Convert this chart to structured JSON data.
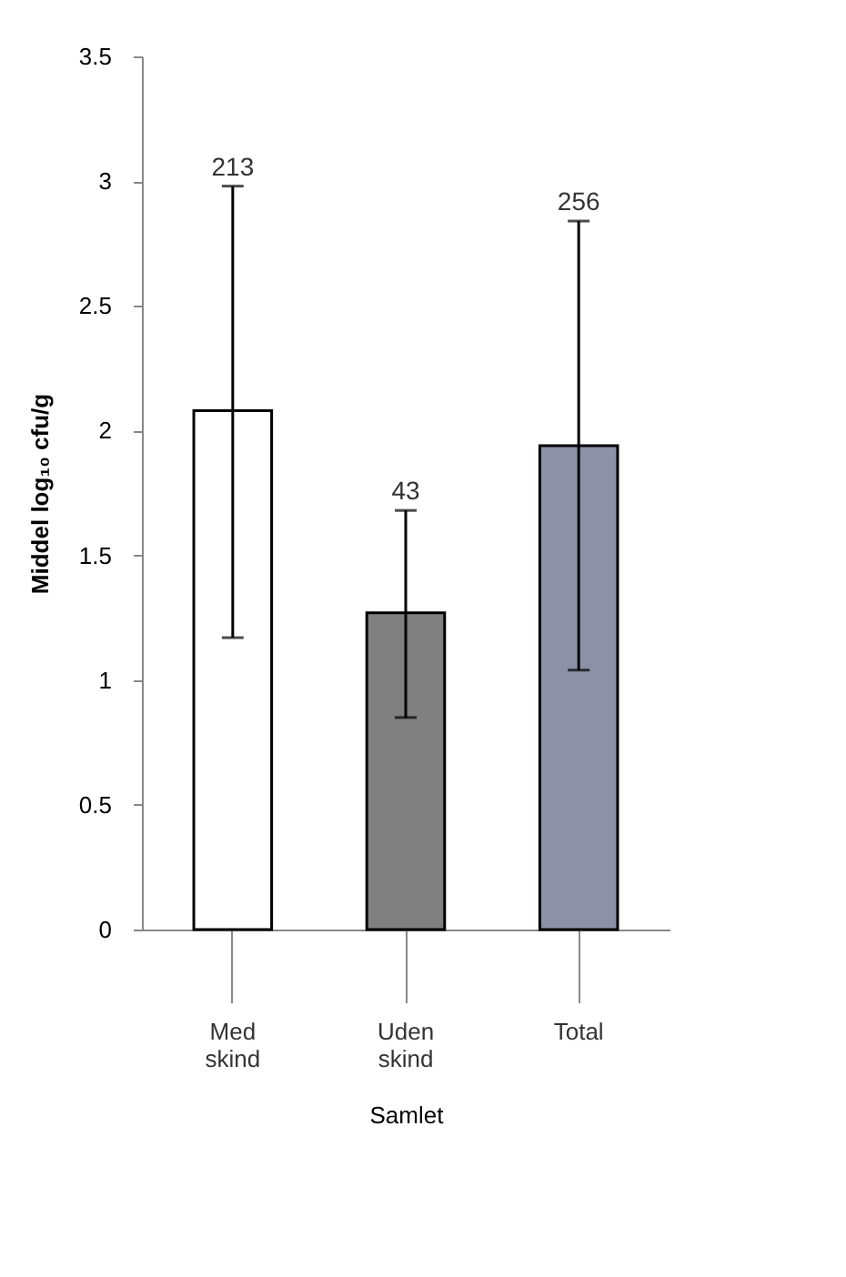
{
  "chart_data": {
    "type": "bar",
    "ylabel": "Middel log₁₀ cfu/g",
    "xlabel": "Samlet",
    "categories": [
      "Med skind",
      "Uden skind",
      "Total"
    ],
    "values": [
      2.08,
      1.27,
      1.94
    ],
    "colors": [
      "#ffffff",
      "#808080",
      "#8c91a8"
    ],
    "errors": [
      [
        1.17,
        2.98
      ],
      [
        0.85,
        1.68
      ],
      [
        1.04,
        2.84
      ]
    ],
    "annotations": [
      {
        "text": "213",
        "x": "Med skind",
        "y": 2.98
      },
      {
        "text": "43",
        "x": "Uden skind",
        "y": 1.68
      },
      {
        "text": "256",
        "x": "Total",
        "y": 2.84
      }
    ],
    "ylim": [
      0,
      3.5
    ],
    "yticks": [
      0,
      0.5,
      1,
      1.5,
      2,
      2.5,
      3,
      3.5
    ],
    "grid": false
  }
}
